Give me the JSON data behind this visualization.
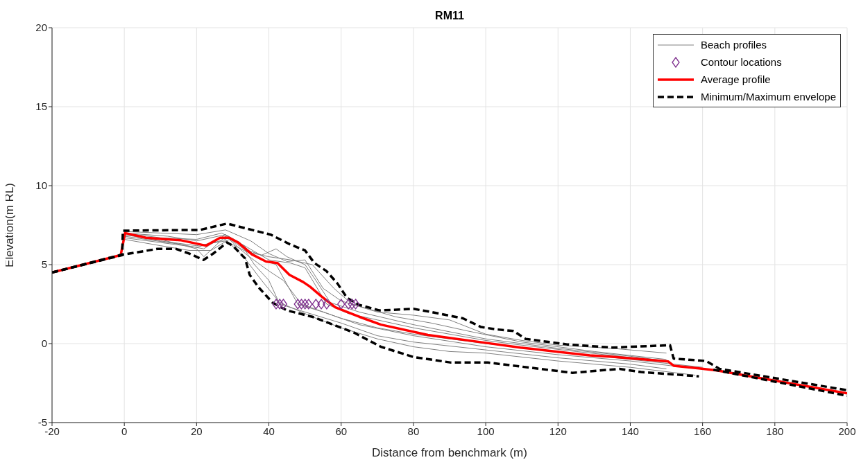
{
  "chart_data": {
    "type": "line",
    "title": "RM11",
    "xlabel": "Distance from benchmark (m)",
    "ylabel": "Elevation(m RL)",
    "xlim": [
      -20,
      200
    ],
    "xticks": [
      -20,
      0,
      20,
      40,
      60,
      80,
      100,
      120,
      140,
      160,
      180,
      200
    ],
    "ylim": [
      -5,
      20
    ],
    "yticks": [
      -5,
      0,
      5,
      10,
      15,
      20
    ],
    "grid": true,
    "legend": "top right",
    "series": [
      {
        "name": "Beach profiles",
        "color": "#808080",
        "line_style": "solid",
        "x": [
          0,
          10,
          20,
          28,
          35,
          40,
          45,
          50,
          55,
          60,
          70,
          80,
          90,
          100,
          110,
          120,
          135,
          150
        ],
        "values": [
          7.1,
          7.0,
          6.9,
          7.2,
          6.5,
          5.7,
          5.2,
          5.3,
          3.5,
          2.7,
          2.0,
          1.8,
          1.5,
          0.6,
          0.2,
          -0.1,
          -0.3,
          -0.6
        ]
      },
      {
        "color": "#808080",
        "line_style": "solid",
        "x": [
          0,
          10,
          20,
          22,
          28,
          33,
          38,
          42,
          45,
          50,
          53,
          57,
          65,
          80,
          100,
          120,
          140,
          150
        ],
        "values": [
          6.9,
          6.6,
          6.0,
          5.5,
          6.8,
          6.0,
          5.6,
          6.0,
          5.5,
          5.0,
          4.0,
          2.6,
          2.0,
          1.2,
          0.3,
          -0.3,
          -0.8,
          -1.1
        ]
      },
      {
        "color": "#808080",
        "line_style": "solid",
        "x": [
          0,
          15,
          22,
          28,
          32,
          36,
          40,
          43,
          50,
          60,
          70,
          80,
          100,
          120,
          140,
          150
        ],
        "values": [
          6.8,
          6.3,
          6.0,
          6.9,
          6.4,
          5.0,
          4.0,
          2.5,
          2.0,
          1.3,
          0.5,
          0.1,
          -0.4,
          -0.9,
          -1.3,
          -1.6
        ]
      },
      {
        "color": "#808080",
        "line_style": "solid",
        "x": [
          0,
          10,
          20,
          27,
          33,
          37,
          42,
          48,
          55,
          65,
          80,
          100,
          120,
          140,
          155
        ],
        "values": [
          7.0,
          6.7,
          6.6,
          7.0,
          6.2,
          5.4,
          5.0,
          2.5,
          2.0,
          1.2,
          0.5,
          -0.2,
          -0.7,
          -1.1,
          -1.5
        ]
      },
      {
        "color": "#808080",
        "line_style": "solid",
        "x": [
          0,
          10,
          18,
          24,
          29,
          34,
          40,
          44,
          49,
          60,
          70,
          80,
          90,
          100,
          120,
          140,
          160
        ],
        "values": [
          6.6,
          6.2,
          5.9,
          5.9,
          6.6,
          5.6,
          4.6,
          4.0,
          2.5,
          1.6,
          1.0,
          0.6,
          0.3,
          0.0,
          -0.5,
          -1.0,
          -1.5
        ]
      },
      {
        "color": "#808080",
        "line_style": "solid",
        "x": [
          0,
          12,
          20,
          28,
          34,
          40,
          46,
          50,
          56,
          62,
          70,
          80,
          90,
          100,
          110,
          125,
          145
        ],
        "values": [
          7.0,
          6.8,
          6.5,
          6.9,
          6.1,
          5.3,
          5.1,
          4.8,
          2.5,
          1.9,
          1.5,
          1.0,
          0.6,
          0.2,
          -0.1,
          -0.5,
          -1.0
        ]
      },
      {
        "color": "#808080",
        "line_style": "solid",
        "x": [
          0,
          10,
          20,
          28,
          34,
          40,
          46,
          52,
          58,
          63,
          75,
          85,
          95,
          110,
          130,
          150
        ],
        "values": [
          6.9,
          6.5,
          6.2,
          6.5,
          5.8,
          5.5,
          5.3,
          5.0,
          3.5,
          2.5,
          1.7,
          1.3,
          0.8,
          0.1,
          -0.5,
          -1.0
        ]
      },
      {
        "color": "#808080",
        "line_style": "solid",
        "x": [
          0,
          10,
          20,
          28,
          33,
          38,
          43,
          52,
          60,
          70,
          80,
          90,
          100,
          120,
          140,
          158
        ],
        "values": [
          6.7,
          6.4,
          6.1,
          6.6,
          5.5,
          4.0,
          2.6,
          1.7,
          1.0,
          0.3,
          -0.2,
          -0.5,
          -0.6,
          -1.1,
          -1.5,
          -2.0
        ]
      },
      {
        "name": "Contour locations",
        "type": "scatter",
        "marker": "diamond",
        "color": "#7e2f8e",
        "x": [
          42,
          43,
          44,
          48,
          49,
          50,
          51,
          53,
          54.5,
          56,
          60,
          62,
          63,
          64
        ],
        "values": [
          2.5,
          2.5,
          2.5,
          2.5,
          2.5,
          2.5,
          2.5,
          2.5,
          2.5,
          2.5,
          2.5,
          2.5,
          2.5,
          2.5
        ]
      },
      {
        "name": "Average profile",
        "color": "#ff0000",
        "line_style": "solid",
        "x": [
          -20,
          -1,
          0.2,
          6,
          15.5,
          22.6,
          26.5,
          29,
          31.5,
          35.3,
          39.2,
          42.4,
          45.7,
          49.5,
          51.4,
          54.5,
          58.4,
          65,
          71,
          84,
          100,
          109.6,
          128.8,
          135,
          150.5,
          152,
          159,
          164,
          200
        ],
        "values": [
          4.5,
          5.6,
          7.0,
          6.7,
          6.55,
          6.2,
          6.7,
          6.7,
          6.4,
          5.65,
          5.2,
          5.1,
          4.35,
          3.9,
          3.6,
          3.0,
          2.3,
          1.7,
          1.2,
          0.55,
          0.05,
          -0.25,
          -0.75,
          -0.83,
          -1.13,
          -1.4,
          -1.57,
          -1.7,
          -3.15
        ]
      },
      {
        "name": "Minimum/Maximum envelope",
        "color": "#000000",
        "line_style": "dashed",
        "x": [
          -20,
          -0.6,
          -0.4,
          21,
          28.4,
          40.5,
          45.7,
          50,
          52.6,
          55.9,
          59,
          61.6,
          65,
          70.6,
          80,
          85,
          93.7,
          98.7,
          103,
          107.7,
          111,
          122.5,
          135,
          151,
          152,
          161,
          164.7,
          200
        ],
        "values": [
          4.5,
          5.6,
          7.15,
          7.2,
          7.6,
          6.9,
          6.3,
          5.9,
          5.1,
          4.6,
          3.8,
          2.9,
          2.45,
          2.1,
          2.2,
          2.0,
          1.6,
          1.05,
          0.9,
          0.8,
          0.3,
          -0.05,
          -0.25,
          -0.1,
          -0.95,
          -1.1,
          -1.6,
          -2.95
        ]
      },
      {
        "color": "#000000",
        "line_style": "dashed",
        "x": [
          -20,
          -1.2,
          9.2,
          14.2,
          18,
          21.9,
          24.6,
          28.4,
          30,
          33.4,
          34.7,
          37.2,
          41,
          45,
          52,
          58.4,
          63.5,
          71,
          80,
          90.4,
          100.6,
          111.5,
          124,
          137,
          143,
          159,
          161,
          163,
          200
        ],
        "values": [
          4.5,
          5.6,
          6.0,
          6.0,
          5.7,
          5.3,
          5.7,
          6.4,
          6.2,
          5.4,
          4.35,
          3.55,
          2.6,
          2.1,
          1.7,
          1.15,
          0.7,
          -0.2,
          -0.85,
          -1.2,
          -1.2,
          -1.5,
          -1.85,
          -1.6,
          -1.8,
          -2.07,
          null,
          -1.65,
          -3.3
        ]
      }
    ]
  }
}
